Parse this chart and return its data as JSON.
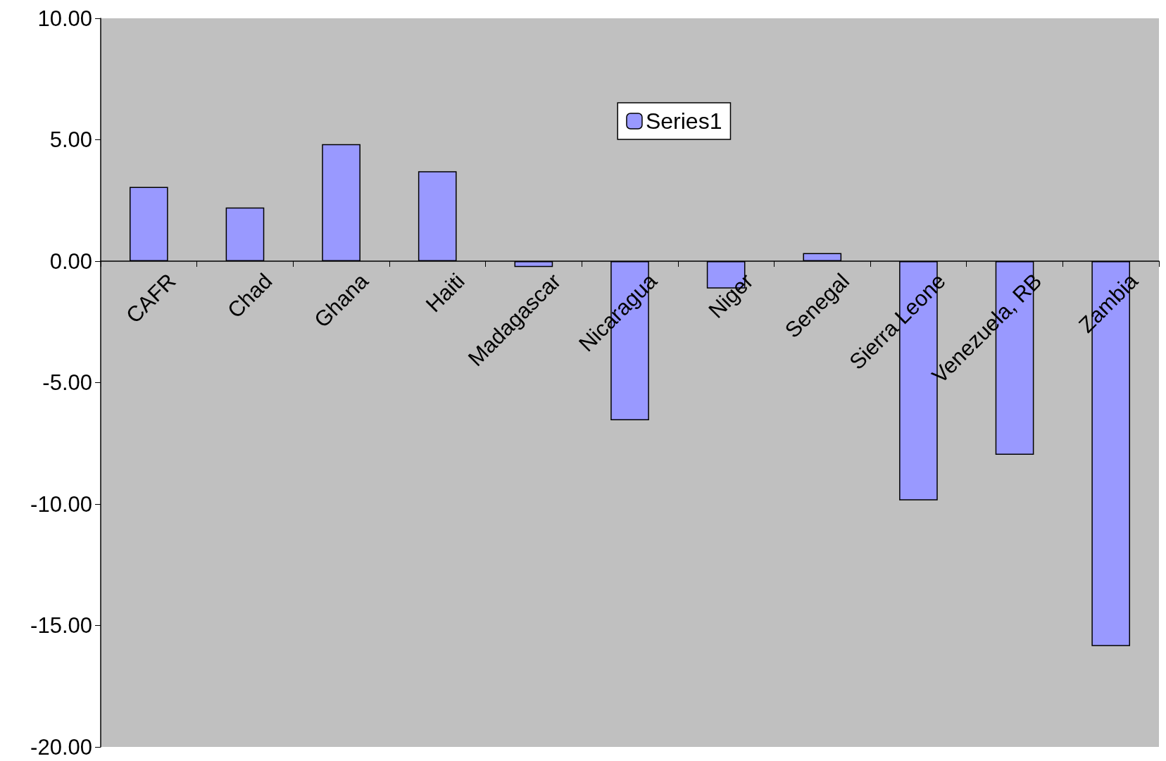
{
  "chart_data": {
    "type": "bar",
    "categories": [
      "CAFR",
      "Chad",
      "Ghana",
      "Haiti",
      "Madagascar",
      "Nicaragua",
      "Niger",
      "Senegal",
      "Sierra Leone",
      "Venezuela, RB",
      "Zambia"
    ],
    "series": [
      {
        "name": "Series1",
        "color": "#9999ff",
        "values": [
          3.06,
          2.21,
          4.82,
          3.7,
          -0.24,
          -6.55,
          -1.12,
          0.33,
          -9.85,
          -7.97,
          -15.85
        ]
      }
    ],
    "ylim": [
      -20,
      10
    ],
    "yticks": [
      {
        "value": -20,
        "label": "-20.00"
      },
      {
        "value": -15,
        "label": "-15.00"
      },
      {
        "value": -10,
        "label": "-10.00"
      },
      {
        "value": -5,
        "label": "-5.00"
      },
      {
        "value": 0,
        "label": "0.00"
      },
      {
        "value": 5,
        "label": "5.00"
      },
      {
        "value": 10,
        "label": "10.00"
      }
    ],
    "grid": false,
    "legend": "top"
  }
}
